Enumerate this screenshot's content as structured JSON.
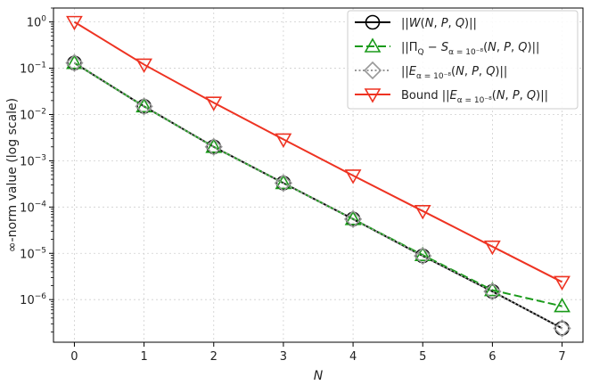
{
  "chart_data": {
    "type": "line",
    "x": [
      0,
      1,
      2,
      3,
      4,
      5,
      6,
      7
    ],
    "xlabel": "N",
    "ylabel": "∞-norm value (log scale)",
    "yscale": "log",
    "xlim": [
      -0.3,
      7.3
    ],
    "ylim": [
      1.2e-07,
      2.0
    ],
    "xticks": [
      "0",
      "1",
      "2",
      "3",
      "4",
      "5",
      "6",
      "7"
    ],
    "yticks": [
      {
        "base": "10",
        "exp": "0"
      },
      {
        "base": "10",
        "exp": "−1"
      },
      {
        "base": "10",
        "exp": "−2"
      },
      {
        "base": "10",
        "exp": "−3"
      },
      {
        "base": "10",
        "exp": "−4"
      },
      {
        "base": "10",
        "exp": "−5"
      },
      {
        "base": "10",
        "exp": "−6"
      }
    ],
    "grid": true,
    "legend_position": "top-right",
    "series": [
      {
        "name": "||W(N, P, Q)||",
        "color": "#000000",
        "marker": "circle",
        "linestyle": "solid",
        "values": [
          0.13,
          0.015,
          0.002,
          0.00033,
          5.5e-05,
          8.8e-06,
          1.5e-06,
          2.4e-07
        ]
      },
      {
        "name": "||Π_Q − S_{α=10^−8}(N, P, Q)||",
        "color": "#1a9a1a",
        "marker": "triangle-up",
        "linestyle": "dashed",
        "values": [
          0.13,
          0.015,
          0.002,
          0.00033,
          5.5e-05,
          9.2e-06,
          1.6e-06,
          7.2e-07
        ]
      },
      {
        "name": "||E_{α=10^−8}(N, P, Q)||",
        "color": "#999999",
        "marker": "diamond",
        "linestyle": "dotted",
        "values": [
          0.13,
          0.015,
          0.002,
          0.00033,
          5.5e-05,
          8.8e-06,
          1.5e-06,
          2.4e-07
        ]
      },
      {
        "name": "Bound ||E_{α=10^−8}(N, P, Q)||",
        "color": "#ee3322",
        "marker": "triangle-down",
        "linestyle": "solid",
        "values": [
          1.0,
          0.12,
          0.018,
          0.0029,
          0.00048,
          8.2e-05,
          1.4e-05,
          2.4e-06
        ]
      }
    ],
    "legend_labels": [
      {
        "pre": "||",
        "it": "W",
        "mid": "(",
        "it2": "N",
        "c1": ", ",
        "it3": "P",
        "c2": ", ",
        "it4": "Q",
        "post": ")||"
      },
      {
        "pre": "||Π",
        "sub1": "Q",
        "mid1": " − ",
        "it": "S",
        "sub2": "α = 10⁻⁸",
        "mid": "(",
        "it2": "N",
        "c1": ", ",
        "it3": "P",
        "c2": ", ",
        "it4": "Q",
        "post": ")||"
      },
      {
        "pre": "||",
        "it": "E",
        "sub2": "α = 10⁻⁸",
        "mid": "(",
        "it2": "N",
        "c1": ", ",
        "it3": "P",
        "c2": ", ",
        "it4": "Q",
        "post": ")||"
      },
      {
        "pre": "Bound ||",
        "it": "E",
        "sub2": "α = 10⁻⁸",
        "mid": "(",
        "it2": "N",
        "c1": ", ",
        "it3": "P",
        "c2": ", ",
        "it4": "Q",
        "post": ")||"
      }
    ]
  }
}
